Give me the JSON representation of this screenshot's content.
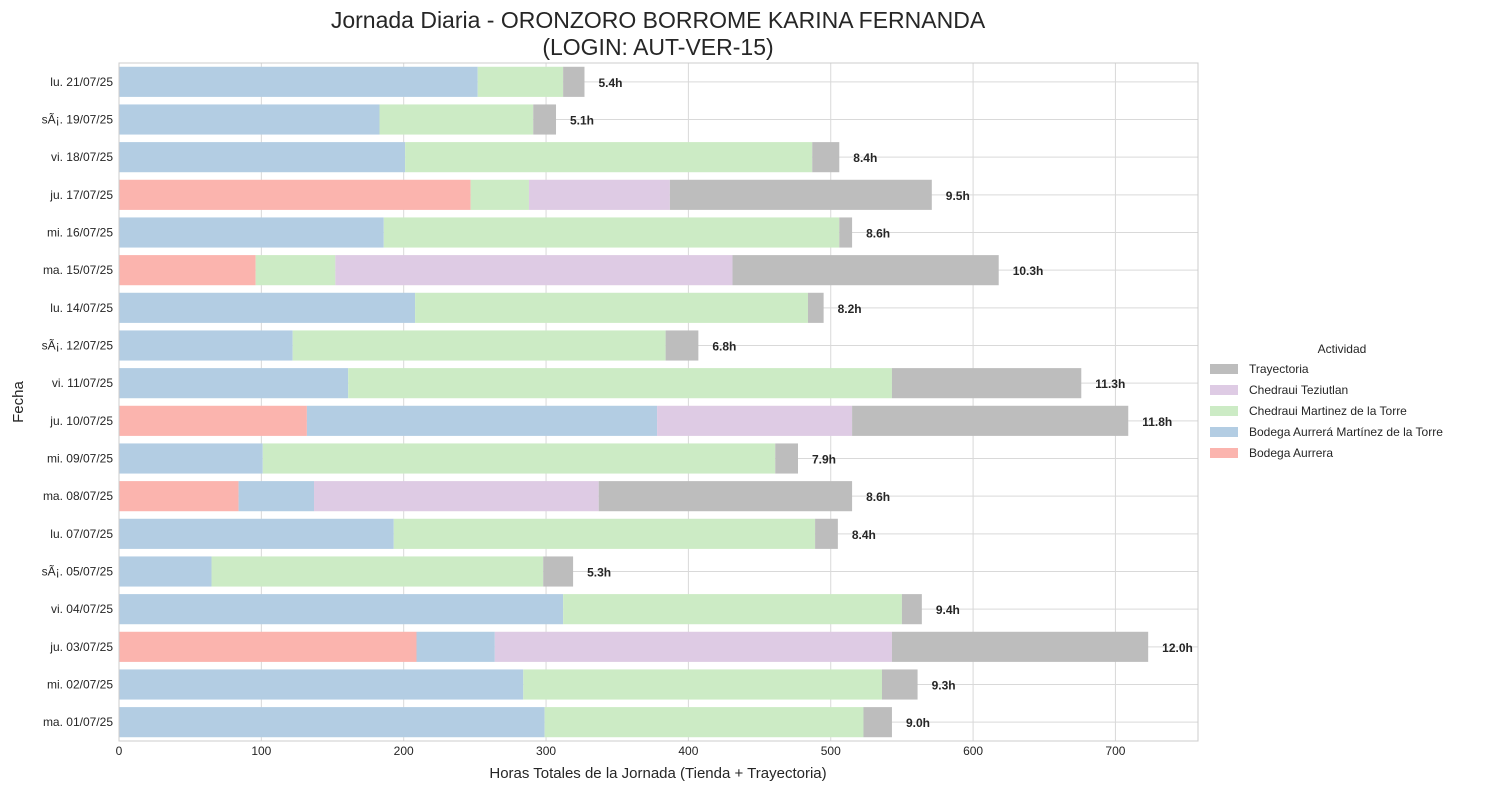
{
  "chart_data": {
    "type": "bar",
    "orientation": "horizontal",
    "stacked": true,
    "title_line1": "Jornada Diaria - ORONZORO BORROME KARINA FERNANDA",
    "title_line2": "(LOGIN: AUT-VER-15)",
    "xlabel": "Horas Totales de la Jornada (Tienda + Trayectoria)",
    "ylabel": "Fecha",
    "xlim": [
      0,
      758
    ],
    "xticks": [
      0,
      100,
      200,
      300,
      400,
      500,
      600,
      700
    ],
    "grid": true,
    "legend": {
      "title": "Actividad",
      "placement": "center-right outside"
    },
    "categories": [
      "lu. 21/07/25",
      "sÃ¡. 19/07/25",
      "vi. 18/07/25",
      "ju. 17/07/25",
      "mi. 16/07/25",
      "ma. 15/07/25",
      "lu. 14/07/25",
      "sÃ¡. 12/07/25",
      "vi. 11/07/25",
      "ju. 10/07/25",
      "mi. 09/07/25",
      "ma. 08/07/25",
      "lu. 07/07/25",
      "sÃ¡. 05/07/25",
      "vi. 04/07/25",
      "ju. 03/07/25",
      "mi. 02/07/25",
      "ma. 01/07/25"
    ],
    "series": [
      {
        "name": "Bodega Aurrera",
        "color": "#fbb4ae",
        "values": [
          0,
          0,
          0,
          247,
          0,
          96,
          0,
          0,
          0,
          132,
          0,
          84,
          0,
          0,
          0,
          209,
          0,
          0
        ]
      },
      {
        "name": "Bodega Aurrerá Martínez de la Torre",
        "color": "#b3cde3",
        "values": [
          252,
          183,
          201,
          0,
          186,
          0,
          208,
          122,
          161,
          246,
          101,
          53,
          193,
          65,
          312,
          55,
          284,
          299
        ]
      },
      {
        "name": "Chedraui Martinez de la Torre",
        "color": "#ccebc5",
        "values": [
          60,
          108,
          286,
          41,
          320,
          56,
          276,
          262,
          382,
          0,
          360,
          0,
          296,
          233,
          238,
          0,
          252,
          224
        ]
      },
      {
        "name": "Chedraui Teziutlan",
        "color": "#decbe4",
        "values": [
          0,
          0,
          0,
          99,
          0,
          279,
          0,
          0,
          0,
          137,
          0,
          200,
          0,
          0,
          0,
          279,
          0,
          0
        ]
      },
      {
        "name": "Trayectoria",
        "color": "#bdbdbd",
        "values": [
          15,
          16,
          19,
          184,
          9,
          187,
          11,
          23,
          133,
          194,
          16,
          178,
          16,
          21,
          14,
          180,
          25,
          20
        ]
      }
    ],
    "totals_labels": [
      "5.4h",
      "5.1h",
      "8.4h",
      "9.5h",
      "8.6h",
      "10.3h",
      "8.2h",
      "6.8h",
      "11.3h",
      "11.8h",
      "7.9h",
      "8.6h",
      "8.4h",
      "5.3h",
      "9.4h",
      "12.0h",
      "9.3h",
      "9.0h"
    ]
  }
}
